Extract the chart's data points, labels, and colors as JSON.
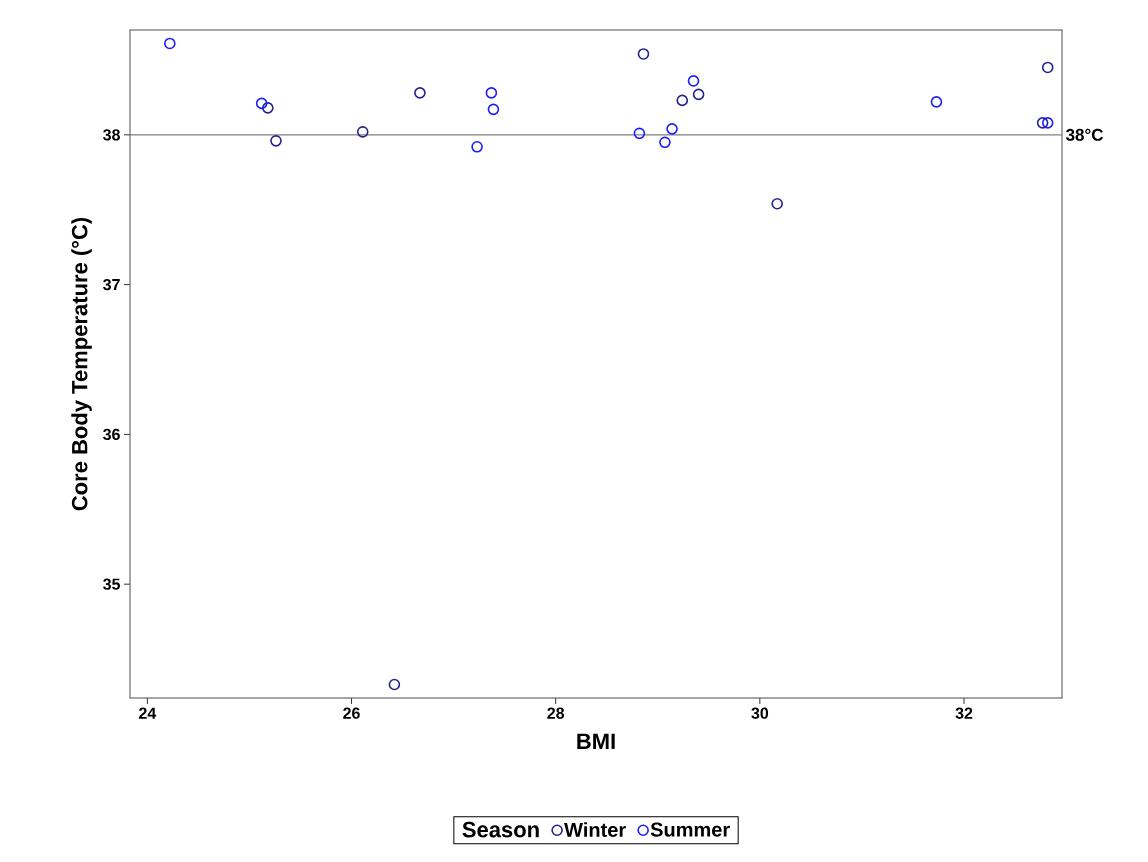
{
  "chart_data": {
    "type": "scatter",
    "xlabel": "BMI",
    "ylabel": "Core Body Temperature (°C)",
    "legend_title": "Season",
    "xlim": [
      23.83,
      32.96
    ],
    "ylim": [
      34.24,
      38.7
    ],
    "xticks": [
      24,
      26,
      28,
      30,
      32
    ],
    "yticks": [
      35,
      36,
      37,
      38
    ],
    "marker": "circle",
    "legend": "bottom",
    "grid": false,
    "ref_lines": [
      {
        "axis": "y",
        "value": 38,
        "label": "38°C",
        "color": "#808080"
      }
    ],
    "series": [
      {
        "name": "Winter",
        "color": "#23238e",
        "x": [
          25.18,
          25.26,
          26.11,
          26.67,
          28.86,
          29.4,
          29.24,
          30.17,
          32.82,
          32.77,
          26.42
        ],
        "values": [
          38.18,
          37.96,
          38.02,
          38.28,
          38.54,
          38.27,
          38.23,
          37.54,
          38.45,
          38.08,
          34.33
        ]
      },
      {
        "name": "Summer",
        "color": "#1c1cff",
        "x": [
          24.22,
          25.12,
          27.37,
          27.39,
          27.23,
          29.35,
          28.82,
          29.14,
          29.07,
          31.73,
          32.82
        ],
        "values": [
          38.61,
          38.21,
          38.28,
          38.17,
          37.92,
          38.36,
          38.01,
          38.04,
          37.95,
          38.22,
          38.08
        ]
      }
    ]
  }
}
